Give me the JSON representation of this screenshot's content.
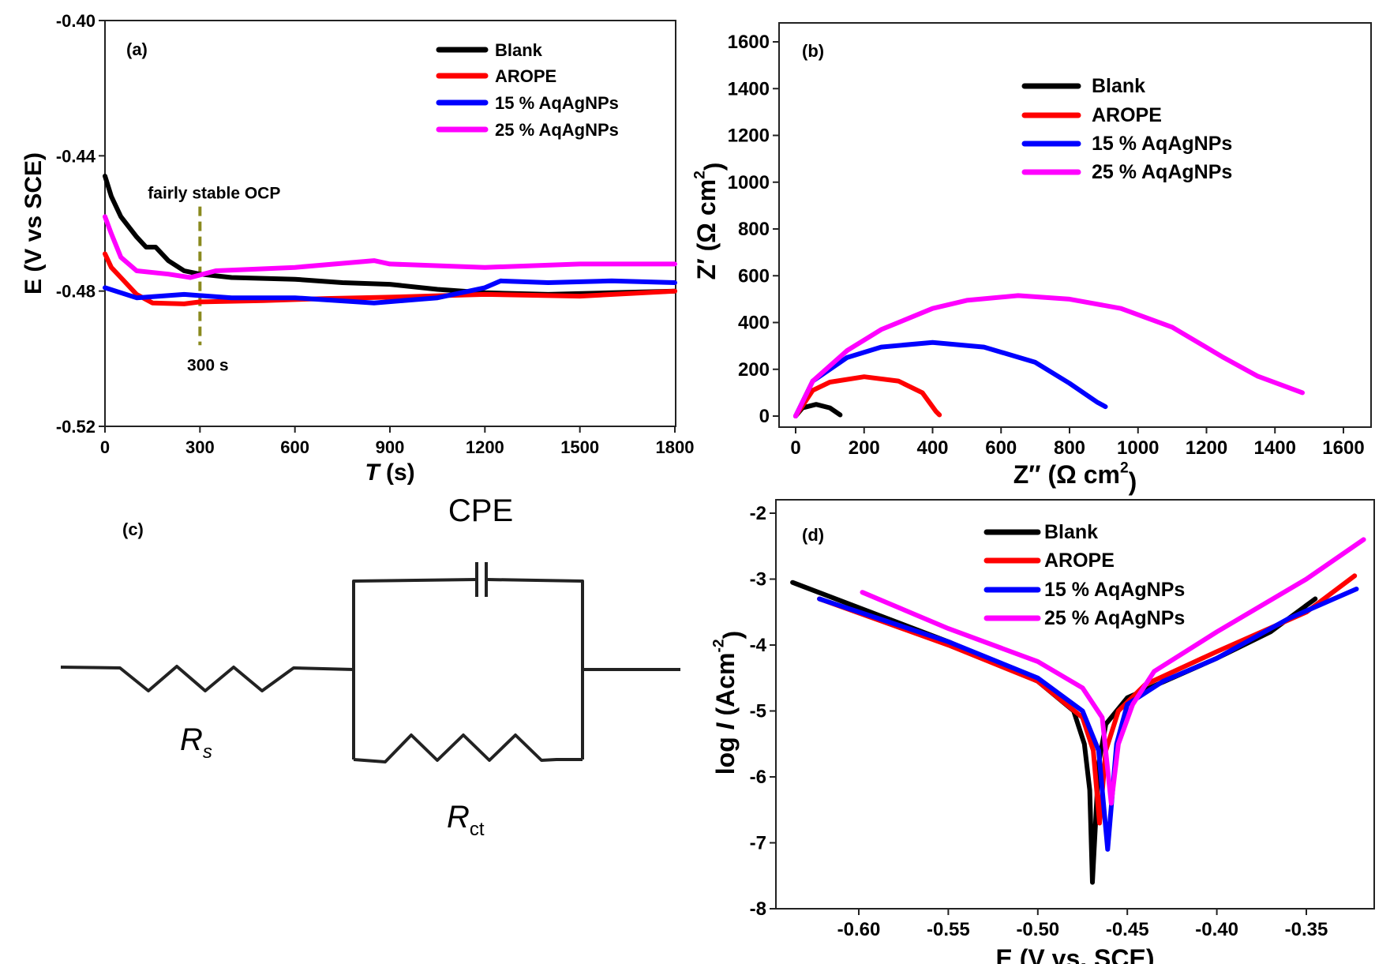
{
  "chart_data": [
    {
      "panel": "(a)",
      "type": "line",
      "xlabel": {
        "italic": "T",
        "rest": " (s)"
      },
      "ylabel": {
        "main": "E (V vs SCE)"
      },
      "xlim": [
        0,
        1800
      ],
      "ylim": [
        -0.52,
        -0.4
      ],
      "xticks": [
        "0",
        "300",
        "600",
        "900",
        "1200",
        "1500",
        "1800"
      ],
      "yticks": [
        "-0.40",
        "-0.44",
        "-0.48",
        "-0.52"
      ],
      "legend_placement": "top-right",
      "annotations": [
        {
          "text": "fairly stable OCP",
          "x": 300,
          "y": -0.455
        },
        {
          "text": "300 s",
          "x": 300,
          "y": -0.497
        }
      ],
      "marker_line": {
        "x": 300,
        "y_from": -0.455,
        "y_to": -0.496,
        "color": "#8a8a1e",
        "style": "dashed"
      },
      "series": [
        {
          "name": "Blank",
          "color": "#000000",
          "points": [
            [
              0,
              -0.446
            ],
            [
              20,
              -0.452
            ],
            [
              50,
              -0.458
            ],
            [
              100,
              -0.464
            ],
            [
              130,
              -0.467
            ],
            [
              160,
              -0.467
            ],
            [
              200,
              -0.471
            ],
            [
              250,
              -0.474
            ],
            [
              300,
              -0.475
            ],
            [
              400,
              -0.476
            ],
            [
              600,
              -0.4765
            ],
            [
              750,
              -0.4775
            ],
            [
              900,
              -0.478
            ],
            [
              1050,
              -0.4795
            ],
            [
              1200,
              -0.4805
            ],
            [
              1400,
              -0.481
            ],
            [
              1600,
              -0.4805
            ],
            [
              1800,
              -0.48
            ]
          ]
        },
        {
          "name": "AROPE",
          "color": "#ff0000",
          "points": [
            [
              0,
              -0.469
            ],
            [
              20,
              -0.473
            ],
            [
              50,
              -0.476
            ],
            [
              100,
              -0.481
            ],
            [
              150,
              -0.4835
            ],
            [
              250,
              -0.4838
            ],
            [
              300,
              -0.4832
            ],
            [
              500,
              -0.4828
            ],
            [
              700,
              -0.4822
            ],
            [
              900,
              -0.4818
            ],
            [
              1200,
              -0.481
            ],
            [
              1500,
              -0.4815
            ],
            [
              1800,
              -0.48
            ]
          ]
        },
        {
          "name": "15 % AqAgNPs",
          "color": "#0000ff",
          "points": [
            [
              0,
              -0.479
            ],
            [
              100,
              -0.482
            ],
            [
              250,
              -0.481
            ],
            [
              400,
              -0.482
            ],
            [
              600,
              -0.482
            ],
            [
              850,
              -0.4835
            ],
            [
              1050,
              -0.482
            ],
            [
              1200,
              -0.479
            ],
            [
              1250,
              -0.477
            ],
            [
              1400,
              -0.4775
            ],
            [
              1600,
              -0.477
            ],
            [
              1800,
              -0.4775
            ]
          ]
        },
        {
          "name": "25 % AqAgNPs",
          "color": "#ff00ff",
          "points": [
            [
              0,
              -0.458
            ],
            [
              20,
              -0.463
            ],
            [
              50,
              -0.47
            ],
            [
              100,
              -0.474
            ],
            [
              200,
              -0.475
            ],
            [
              270,
              -0.476
            ],
            [
              350,
              -0.474
            ],
            [
              600,
              -0.473
            ],
            [
              850,
              -0.471
            ],
            [
              900,
              -0.472
            ],
            [
              1200,
              -0.473
            ],
            [
              1500,
              -0.472
            ],
            [
              1800,
              -0.472
            ]
          ]
        }
      ]
    },
    {
      "panel": "(b)",
      "type": "line",
      "xlabel": {
        "main": "Z″ (Ω cm",
        "sup": "2",
        "end": ")"
      },
      "ylabel": {
        "main": "Z′ (Ω cm",
        "sup": "2",
        "end": ")"
      },
      "xlim": [
        0,
        1600
      ],
      "ylim": [
        0,
        1600
      ],
      "xticks": [
        "0",
        "200",
        "400",
        "600",
        "800",
        "1000",
        "1200",
        "1400",
        "1600"
      ],
      "yticks": [
        "0",
        "200",
        "400",
        "600",
        "800",
        "1000",
        "1200",
        "1400",
        "1600"
      ],
      "legend_placement": "top-right",
      "series": [
        {
          "name": "Blank",
          "color": "#000000",
          "points": [
            [
              0,
              0
            ],
            [
              20,
              35
            ],
            [
              60,
              50
            ],
            [
              100,
              35
            ],
            [
              130,
              5
            ]
          ]
        },
        {
          "name": "AROPE",
          "color": "#ff0000",
          "points": [
            [
              0,
              0
            ],
            [
              50,
              110
            ],
            [
              100,
              145
            ],
            [
              200,
              168
            ],
            [
              300,
              150
            ],
            [
              370,
              100
            ],
            [
              410,
              20
            ],
            [
              420,
              5
            ]
          ]
        },
        {
          "name": "15 % AqAgNPs",
          "color": "#0000ff",
          "points": [
            [
              0,
              0
            ],
            [
              50,
              150
            ],
            [
              150,
              250
            ],
            [
              250,
              295
            ],
            [
              400,
              315
            ],
            [
              550,
              295
            ],
            [
              700,
              230
            ],
            [
              800,
              140
            ],
            [
              880,
              60
            ],
            [
              905,
              40
            ]
          ]
        },
        {
          "name": "25 % AqAgNPs",
          "color": "#ff00ff",
          "points": [
            [
              0,
              0
            ],
            [
              50,
              150
            ],
            [
              150,
              280
            ],
            [
              250,
              370
            ],
            [
              400,
              460
            ],
            [
              500,
              495
            ],
            [
              650,
              515
            ],
            [
              800,
              500
            ],
            [
              950,
              460
            ],
            [
              1100,
              380
            ],
            [
              1250,
              250
            ],
            [
              1350,
              170
            ],
            [
              1480,
              100
            ]
          ]
        }
      ]
    },
    {
      "panel": "(d)",
      "type": "line",
      "xlabel": {
        "main": "E (V vs. SCE)"
      },
      "ylabel": {
        "main": "log ",
        "italic": "I",
        "rest": " (Acm",
        "sup": "-2",
        "end": ")"
      },
      "xlim": [
        -0.645,
        -0.31
      ],
      "ylim": [
        -8,
        -1.8
      ],
      "xticks": [
        "-0.60",
        "-0.55",
        "-0.50",
        "-0.45",
        "-0.40",
        "-0.35"
      ],
      "yticks": [
        "-2",
        "-3",
        "-4",
        "-5",
        "-6",
        "-7",
        "-8"
      ],
      "legend_placement": "top-center",
      "series": [
        {
          "name": "Blank",
          "color": "#000000",
          "points": [
            [
              -0.637,
              -3.05
            ],
            [
              -0.55,
              -3.95
            ],
            [
              -0.5,
              -4.55
            ],
            [
              -0.48,
              -5.0
            ],
            [
              -0.474,
              -5.5
            ],
            [
              -0.471,
              -6.2
            ],
            [
              -0.4695,
              -7.6
            ],
            [
              -0.466,
              -5.8
            ],
            [
              -0.462,
              -5.2
            ],
            [
              -0.45,
              -4.8
            ],
            [
              -0.4,
              -4.2
            ],
            [
              -0.37,
              -3.8
            ],
            [
              -0.345,
              -3.3
            ]
          ]
        },
        {
          "name": "AROPE",
          "color": "#ff0000",
          "points": [
            [
              -0.622,
              -3.3
            ],
            [
              -0.55,
              -4.0
            ],
            [
              -0.5,
              -4.55
            ],
            [
              -0.475,
              -5.1
            ],
            [
              -0.469,
              -5.6
            ],
            [
              -0.4655,
              -6.7
            ],
            [
              -0.462,
              -5.6
            ],
            [
              -0.455,
              -5.0
            ],
            [
              -0.44,
              -4.6
            ],
            [
              -0.4,
              -4.1
            ],
            [
              -0.35,
              -3.5
            ],
            [
              -0.323,
              -2.95
            ]
          ]
        },
        {
          "name": "15 % AqAgNPs",
          "color": "#0000ff",
          "points": [
            [
              -0.622,
              -3.3
            ],
            [
              -0.55,
              -3.95
            ],
            [
              -0.5,
              -4.5
            ],
            [
              -0.475,
              -5.0
            ],
            [
              -0.466,
              -5.6
            ],
            [
              -0.461,
              -7.1
            ],
            [
              -0.456,
              -5.5
            ],
            [
              -0.45,
              -4.9
            ],
            [
              -0.43,
              -4.55
            ],
            [
              -0.4,
              -4.2
            ],
            [
              -0.36,
              -3.6
            ],
            [
              -0.322,
              -3.15
            ]
          ]
        },
        {
          "name": "25 % AqAgNPs",
          "color": "#ff00ff",
          "points": [
            [
              -0.598,
              -3.2
            ],
            [
              -0.55,
              -3.75
            ],
            [
              -0.5,
              -4.25
            ],
            [
              -0.475,
              -4.65
            ],
            [
              -0.464,
              -5.1
            ],
            [
              -0.459,
              -6.4
            ],
            [
              -0.455,
              -5.5
            ],
            [
              -0.447,
              -4.9
            ],
            [
              -0.435,
              -4.4
            ],
            [
              -0.4,
              -3.8
            ],
            [
              -0.35,
              -3.0
            ],
            [
              -0.318,
              -2.4
            ]
          ]
        }
      ]
    }
  ],
  "circuit": {
    "panel": "(c)",
    "cpe_label": "CPE",
    "rs_label": {
      "main": "R",
      "sub": "s"
    },
    "rct_label": {
      "main": "R",
      "sub": "ct"
    }
  }
}
